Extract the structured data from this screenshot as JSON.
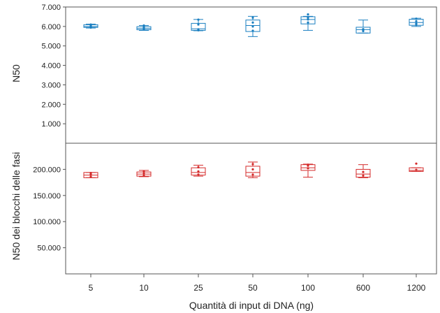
{
  "chart_data": [
    {
      "type": "box",
      "panel": "top",
      "ylabel": "N50",
      "ylim": [
        0,
        7000
      ],
      "yticks": [
        {
          "value": 1000,
          "label": "1.000"
        },
        {
          "value": 2000,
          "label": "2.000"
        },
        {
          "value": 3000,
          "label": "3.000"
        },
        {
          "value": 4000,
          "label": "4.000"
        },
        {
          "value": 5000,
          "label": "5.000"
        },
        {
          "value": 6000,
          "label": "6.000"
        },
        {
          "value": 7000,
          "label": "7.000"
        }
      ],
      "color": "#1a7fc1",
      "categories": [
        "5",
        "10",
        "25",
        "50",
        "100",
        "600",
        "1200"
      ],
      "boxes": [
        {
          "min": 5920,
          "q1": 5950,
          "median": 6000,
          "q3": 6090,
          "max": 6120,
          "points": [
            5940,
            5990,
            6040,
            6100
          ]
        },
        {
          "min": 5800,
          "q1": 5830,
          "median": 5900,
          "q3": 5990,
          "max": 6050,
          "points": [
            5840,
            5900,
            5960,
            6050
          ]
        },
        {
          "min": 5780,
          "q1": 5800,
          "median": 5880,
          "q3": 6160,
          "max": 6360,
          "points": [
            5800,
            5850,
            6100,
            6350
          ]
        },
        {
          "min": 5480,
          "q1": 5740,
          "median": 6050,
          "q3": 6330,
          "max": 6520,
          "points": [
            5780,
            6000,
            6200,
            6450
          ]
        },
        {
          "min": 5800,
          "q1": 6130,
          "median": 6360,
          "q3": 6500,
          "max": 6520,
          "points": [
            6200,
            6360,
            6450,
            6620
          ]
        },
        {
          "min": 5660,
          "q1": 5660,
          "median": 5840,
          "q3": 5960,
          "max": 6330,
          "points": [
            5760,
            5820,
            5860
          ]
        },
        {
          "min": 6000,
          "q1": 6060,
          "median": 6200,
          "q3": 6370,
          "max": 6420,
          "points": [
            6080,
            6150,
            6270,
            6400
          ]
        }
      ]
    },
    {
      "type": "box",
      "panel": "bottom",
      "ylabel": "N50 dei blocchi delle fasi",
      "xlabel": "Quantità di input di DNA (ng)",
      "ylim": [
        0,
        250000
      ],
      "yticks": [
        {
          "value": 50000,
          "label": "50.000"
        },
        {
          "value": 100000,
          "label": "100.000"
        },
        {
          "value": 150000,
          "label": "150.000"
        },
        {
          "value": 200000,
          "label": "200.000"
        }
      ],
      "color": "#d42a2a",
      "categories": [
        "5",
        "10",
        "25",
        "50",
        "100",
        "600",
        "1200"
      ],
      "boxes": [
        {
          "min": 184000,
          "q1": 184000,
          "median": 189000,
          "q3": 194000,
          "max": 194000,
          "points": [
            186000,
            190000,
            193000
          ]
        },
        {
          "min": 186000,
          "q1": 187000,
          "median": 191000,
          "q3": 195000,
          "max": 198000,
          "points": [
            188000,
            192000,
            196000
          ]
        },
        {
          "min": 187000,
          "q1": 189000,
          "median": 194000,
          "q3": 203000,
          "max": 208000,
          "points": [
            190000,
            196000,
            204000
          ]
        },
        {
          "min": 184000,
          "q1": 187000,
          "median": 194000,
          "q3": 206000,
          "max": 214000,
          "points": [
            190000,
            200000,
            210000
          ]
        },
        {
          "min": 185000,
          "q1": 198000,
          "median": 203000,
          "q3": 209000,
          "max": 210000,
          "points": [
            202000,
            207000,
            209000
          ]
        },
        {
          "min": 184000,
          "q1": 185000,
          "median": 191000,
          "q3": 200000,
          "max": 209000,
          "points": [
            188000,
            195000
          ]
        },
        {
          "min": 196000,
          "q1": 196000,
          "median": 198000,
          "q3": 203000,
          "max": 203000,
          "points": [
            199000,
            211000
          ]
        }
      ]
    }
  ]
}
